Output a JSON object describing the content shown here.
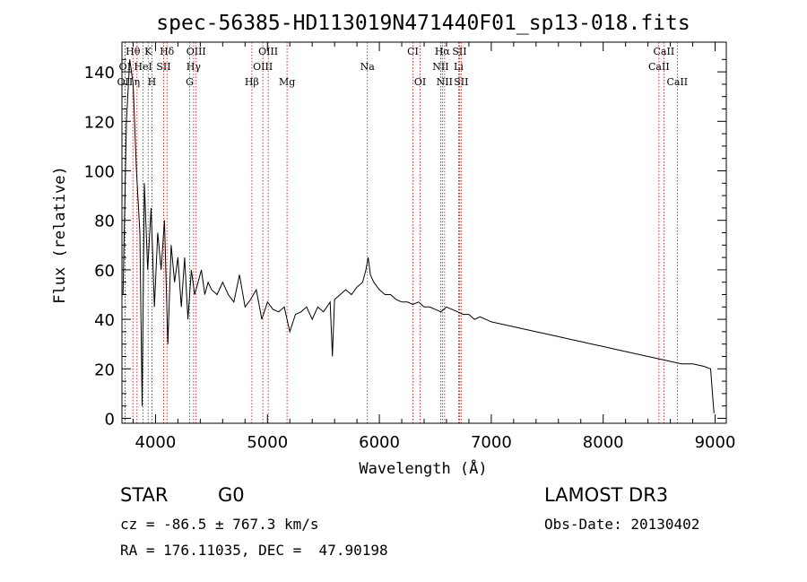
{
  "chart_data": {
    "type": "line",
    "title": "spec-56385-HD113019N471440F01_sp13-018.fits",
    "xlabel": "Wavelength (Å)",
    "ylabel": "Flux (relative)",
    "xlim": [
      3700,
      9100
    ],
    "ylim": [
      -2,
      152
    ],
    "xticks": [
      4000,
      5000,
      6000,
      7000,
      8000,
      9000
    ],
    "yticks": [
      0,
      20,
      40,
      60,
      80,
      100,
      120,
      140
    ],
    "series": [
      {
        "name": "spectrum",
        "x": [
          3710,
          3740,
          3770,
          3800,
          3830,
          3860,
          3880,
          3900,
          3930,
          3960,
          3990,
          4020,
          4050,
          4080,
          4110,
          4140,
          4170,
          4200,
          4230,
          4260,
          4290,
          4320,
          4350,
          4380,
          4410,
          4440,
          4470,
          4500,
          4550,
          4600,
          4650,
          4700,
          4750,
          4800,
          4850,
          4900,
          4950,
          5000,
          5050,
          5100,
          5150,
          5200,
          5250,
          5300,
          5350,
          5400,
          5450,
          5500,
          5560,
          5580,
          5600,
          5650,
          5700,
          5750,
          5800,
          5850,
          5880,
          5900,
          5920,
          5950,
          6000,
          6050,
          6100,
          6150,
          6200,
          6250,
          6300,
          6350,
          6400,
          6450,
          6500,
          6550,
          6600,
          6650,
          6700,
          6750,
          6800,
          6850,
          6900,
          6950,
          7000,
          7100,
          7200,
          7300,
          7400,
          7500,
          7600,
          7700,
          7800,
          7900,
          8000,
          8100,
          8200,
          8300,
          8400,
          8500,
          8600,
          8700,
          8800,
          8900,
          8960,
          8980,
          8990
        ],
        "values": [
          50,
          120,
          145,
          135,
          100,
          75,
          5,
          95,
          60,
          85,
          45,
          75,
          60,
          80,
          30,
          70,
          55,
          65,
          45,
          65,
          40,
          60,
          50,
          55,
          60,
          50,
          55,
          52,
          50,
          55,
          50,
          47,
          58,
          45,
          48,
          52,
          40,
          47,
          44,
          43,
          45,
          35,
          42,
          43,
          45,
          40,
          45,
          43,
          47,
          25,
          48,
          50,
          52,
          50,
          53,
          55,
          60,
          65,
          58,
          55,
          52,
          50,
          50,
          48,
          47,
          47,
          46,
          47,
          45,
          45,
          44,
          43,
          45,
          44,
          43,
          42,
          42,
          40,
          41,
          40,
          39,
          38,
          37,
          36,
          35,
          34,
          33,
          32,
          31,
          30,
          29,
          28,
          27,
          26,
          25,
          24,
          23,
          22,
          22,
          21,
          20,
          8,
          2
        ]
      }
    ],
    "spectral_lines": [
      {
        "label": "Hθ",
        "wavelength": 3798,
        "row": 1
      },
      {
        "label": "K",
        "wavelength": 3934,
        "row": 1
      },
      {
        "label": "Hδ",
        "wavelength": 4102,
        "row": 1
      },
      {
        "label": "OIII",
        "wavelength": 4363,
        "row": 1
      },
      {
        "label": "OIII",
        "wavelength": 5007,
        "row": 1
      },
      {
        "label": "CI",
        "wavelength": 6300,
        "row": 1
      },
      {
        "label": "Hα",
        "wavelength": 6563,
        "row": 1
      },
      {
        "label": "SII",
        "wavelength": 6716,
        "row": 1
      },
      {
        "label": "CaII",
        "wavelength": 8542,
        "row": 1
      },
      {
        "label": "OI",
        "wavelength": 3727,
        "row": 2
      },
      {
        "label": "HeI",
        "wavelength": 3889,
        "row": 2
      },
      {
        "label": "SII",
        "wavelength": 4072,
        "row": 2
      },
      {
        "label": "Hγ",
        "wavelength": 4340,
        "row": 2
      },
      {
        "label": "OIII",
        "wavelength": 4959,
        "row": 2
      },
      {
        "label": "Na",
        "wavelength": 5893,
        "row": 2
      },
      {
        "label": "NII",
        "wavelength": 6548,
        "row": 2
      },
      {
        "label": "Li",
        "wavelength": 6708,
        "row": 2
      },
      {
        "label": "CaII",
        "wavelength": 8498,
        "row": 2
      },
      {
        "label": "OII",
        "wavelength": 3727,
        "row": 3
      },
      {
        "label": "η",
        "wavelength": 3835,
        "row": 3
      },
      {
        "label": "H",
        "wavelength": 3968,
        "row": 3
      },
      {
        "label": "G",
        "wavelength": 4305,
        "row": 3
      },
      {
        "label": "Hβ",
        "wavelength": 4861,
        "row": 3
      },
      {
        "label": "Mg",
        "wavelength": 5175,
        "row": 3
      },
      {
        "label": "OI",
        "wavelength": 6364,
        "row": 3
      },
      {
        "label": "NII",
        "wavelength": 6583,
        "row": 3
      },
      {
        "label": "SII",
        "wavelength": 6731,
        "row": 3
      },
      {
        "label": "CaII",
        "wavelength": 8662,
        "row": 3
      }
    ],
    "line_color": "#cc0000"
  },
  "info": {
    "object_class": "STAR",
    "subclass": "G0",
    "survey": "LAMOST DR3",
    "redshift": "cz = -86.5 ± 767.3 km/s",
    "obs_date": "Obs-Date: 20130402",
    "coords": "RA = 176.11035, DEC =  47.90198"
  }
}
